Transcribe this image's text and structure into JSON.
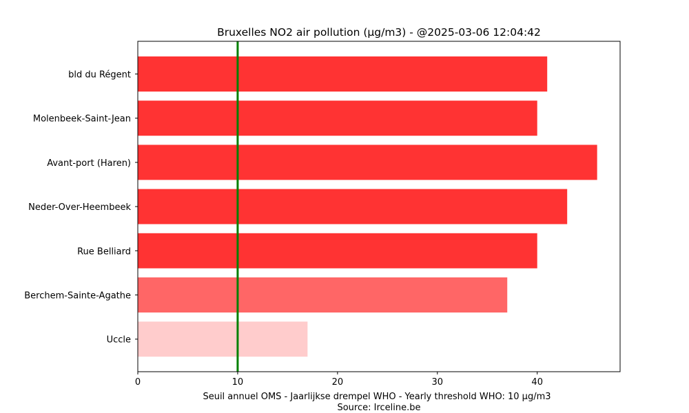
{
  "chart_data": {
    "type": "bar",
    "orientation": "horizontal",
    "title": "Bruxelles NO2 air pollution (µg/m3) - @2025-03-06 12:04:42",
    "xlabel_lines": [
      "Seuil annuel OMS - Jaarlijkse drempel WHO - Yearly threshold WHO: 10 µg/m3",
      "Source: Irceline.be"
    ],
    "xlim": [
      0,
      48.3
    ],
    "xticks": [
      0,
      10,
      20,
      30,
      40
    ],
    "threshold": 10,
    "grid": false,
    "categories": [
      "bld du Régent",
      "Molenbeek-Saint-Jean",
      "Avant-port (Haren)",
      "Neder-Over-Heembeek",
      "Rue Belliard",
      "Berchem-Sainte-Agathe",
      "Uccle"
    ],
    "values": [
      41,
      40,
      46,
      43,
      40,
      37,
      17
    ],
    "colors": [
      "#ff3333",
      "#ff3333",
      "#ff3333",
      "#ff3333",
      "#ff3333",
      "#ff6666",
      "#ffcccc"
    ],
    "threshold_color": "#008000"
  }
}
